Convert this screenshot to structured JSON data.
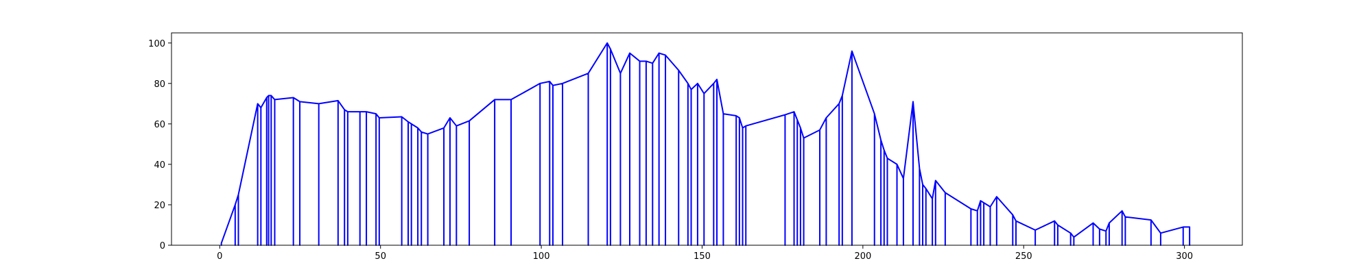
{
  "chart_data": {
    "type": "line",
    "title": "",
    "xlabel": "",
    "ylabel": "",
    "xlim": [
      -15,
      318
    ],
    "ylim": [
      0,
      105
    ],
    "xticks": [
      0,
      50,
      100,
      150,
      200,
      250,
      300
    ],
    "yticks": [
      0,
      20,
      40,
      60,
      80,
      100
    ],
    "grid": false,
    "legend": "none",
    "line_color": "#0000ff",
    "drop_to_zero": true,
    "series": [
      {
        "x": [
          0.5,
          4.8,
          5.8,
          11.8,
          12.8,
          14.6,
          15.2,
          16.0,
          17.1,
          22.9,
          24.9,
          30.8,
          36.8,
          38.8,
          39.8,
          43.6,
          45.6,
          48.6,
          49.6,
          56.6,
          58.6,
          59.6,
          61.6,
          62.7,
          64.7,
          69.7,
          71.6,
          73.6,
          77.6,
          85.5,
          90.6,
          99.6,
          102.6,
          103.6,
          106.6,
          114.6,
          120.5,
          121.5,
          124.6,
          127.5,
          130.6,
          132.6,
          134.6,
          136.6,
          138.6,
          142.7,
          145.6,
          146.6,
          148.6,
          150.6,
          153.6,
          154.6,
          156.6,
          160.6,
          161.6,
          162.6,
          163.6,
          175.8,
          178.6,
          179.6,
          180.6,
          181.6,
          186.6,
          188.6,
          192.6,
          193.6,
          196.6,
          203.6,
          205.6,
          206.6,
          207.6,
          210.6,
          212.6,
          215.6,
          217.6,
          218.6,
          219.6,
          221.6,
          222.6,
          225.6,
          233.6,
          235.6,
          236.6,
          237.6,
          239.6,
          241.6,
          246.6,
          247.6,
          253.6,
          259.6,
          260.6,
          264.6,
          265.6,
          271.6,
          273.6,
          275.6,
          276.6,
          280.6,
          281.6,
          289.6,
          292.6,
          299.6,
          301.6
        ],
        "values": [
          1,
          20,
          25,
          70,
          68,
          73,
          74,
          74,
          72,
          73,
          71,
          70,
          71.5,
          67,
          66,
          66,
          66,
          65,
          63,
          63.5,
          61,
          60,
          58,
          56,
          55,
          58,
          63,
          59,
          61.5,
          72,
          72,
          80,
          81,
          79,
          80,
          85,
          100,
          97,
          85,
          95,
          91,
          91,
          90,
          95,
          94,
          86.5,
          80,
          77,
          80,
          75,
          80,
          82,
          65,
          64,
          63,
          58,
          59,
          64.5,
          66,
          62,
          58,
          53,
          57,
          63,
          70,
          74,
          96,
          65,
          52,
          47,
          43,
          40,
          33,
          71,
          38,
          30,
          28,
          23,
          32,
          26,
          18,
          17,
          22,
          21,
          19,
          24,
          15,
          12,
          7.5,
          12,
          10,
          6,
          4,
          11,
          8,
          7,
          11,
          17,
          14,
          12.5,
          6,
          9,
          9
        ]
      }
    ]
  }
}
